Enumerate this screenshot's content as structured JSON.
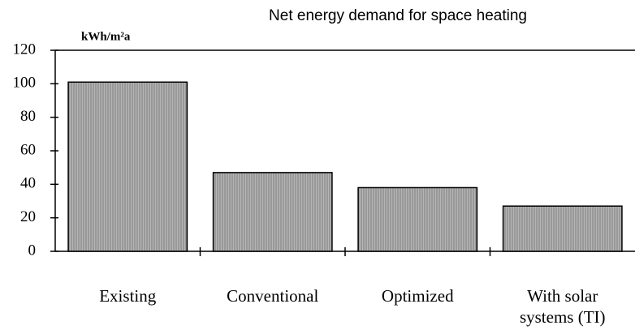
{
  "chart_data": {
    "type": "bar",
    "title": "Net energy demand for space heating",
    "y_label": "kWh/m²a",
    "categories": [
      "Existing",
      "Conventional",
      "Optimized",
      "With solar systems (TI)"
    ],
    "values": [
      101,
      47,
      38,
      27
    ],
    "color": "#a8a8a8",
    "ylim": [
      0,
      120
    ],
    "yticks": [
      0,
      20,
      40,
      60,
      80,
      100,
      120
    ],
    "grid": false
  }
}
